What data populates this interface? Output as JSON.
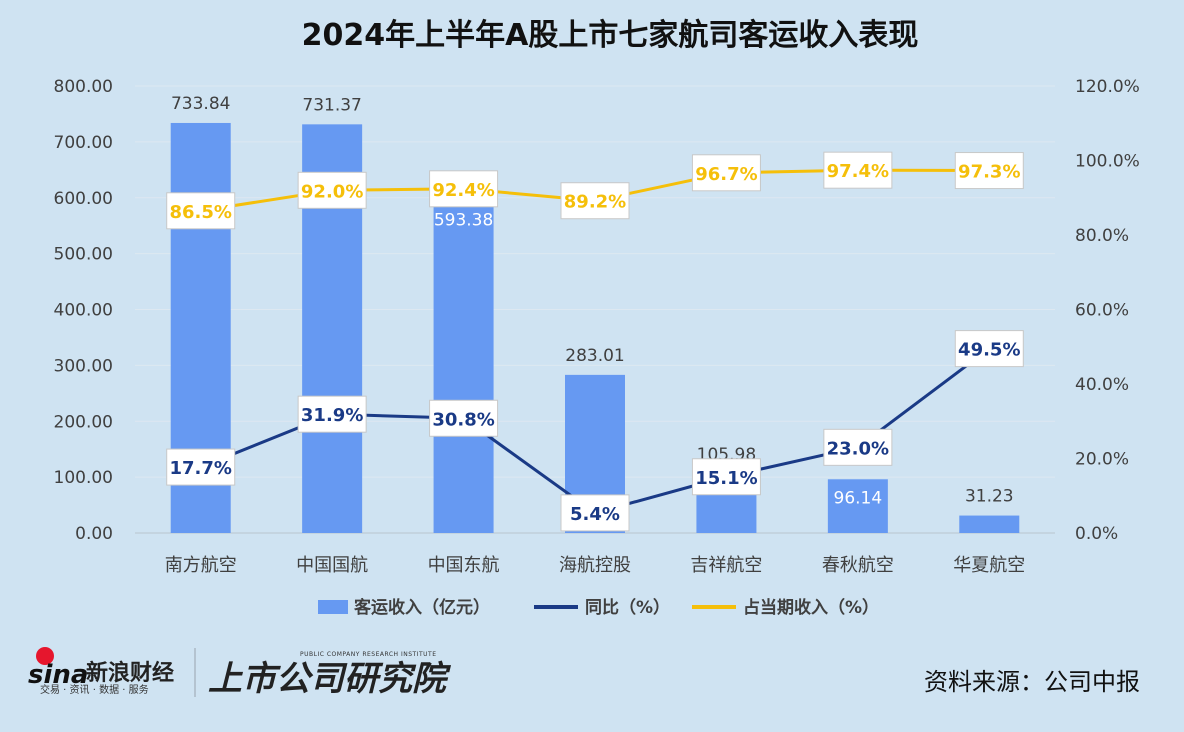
{
  "title": "2024年上半年A股上市七家航司客运收入表现",
  "source": "资料来源：公司中报",
  "branding": {
    "sina_word": "sina",
    "sina_cn": "新浪财经",
    "sina_sub": "交易 · 资讯 · 数据 · 服务",
    "institute_cn": "上市公司研究院",
    "institute_en": "PUBLIC COMPANY RESEARCH INSTITUTE"
  },
  "colors": {
    "bar": "#6699f2",
    "yoy": "#1a3a86",
    "share": "#f5bf0a",
    "background": "#cfe3f2"
  },
  "chart_data": {
    "type": "bar",
    "title": "2024年上半年A股上市七家航司客运收入表现",
    "categories": [
      "南方航空",
      "中国国航",
      "中国东航",
      "海航控股",
      "吉祥航空",
      "春秋航空",
      "华夏航空"
    ],
    "y_left": {
      "min": 0,
      "max": 800,
      "ticks": [
        "800.00",
        "700.00",
        "600.00",
        "500.00",
        "400.00",
        "300.00",
        "200.00",
        "100.00",
        "0.00"
      ]
    },
    "y_right": {
      "min": 0,
      "max": 120,
      "ticks": [
        "120.0%",
        "100.0%",
        "80.0%",
        "60.0%",
        "40.0%",
        "20.0%",
        "0.0%"
      ]
    },
    "series": [
      {
        "name": "客运收入（亿元）",
        "type": "bar",
        "axis": "left",
        "values": [
          733.84,
          731.37,
          593.38,
          283.01,
          105.98,
          96.14,
          31.23
        ],
        "labels": [
          "733.84",
          "731.37",
          "593.38",
          "283.01",
          "105.98",
          "96.14",
          "31.23"
        ]
      },
      {
        "name": "同比（%）",
        "type": "line",
        "axis": "right",
        "values": [
          17.7,
          31.9,
          30.8,
          5.4,
          15.1,
          23.0,
          49.5
        ],
        "labels": [
          "17.7%",
          "31.9%",
          "30.8%",
          "5.4%",
          "15.1%",
          "23.0%",
          "49.5%"
        ]
      },
      {
        "name": "占当期收入（%）",
        "type": "line",
        "axis": "right",
        "values": [
          86.5,
          92.0,
          92.4,
          89.2,
          96.7,
          97.4,
          97.3
        ],
        "labels": [
          "86.5%",
          "92.0%",
          "92.4%",
          "89.2%",
          "96.7%",
          "97.4%",
          "97.3%"
        ]
      }
    ],
    "legend": [
      "客运收入（亿元）",
      "同比（%）",
      "占当期收入（%）"
    ],
    "legend_position": "bottom"
  }
}
